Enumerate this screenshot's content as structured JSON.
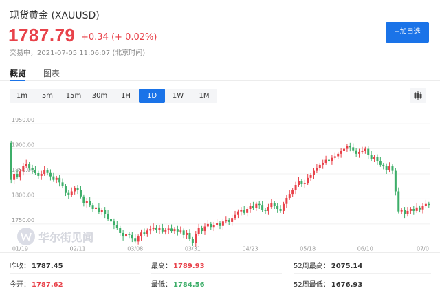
{
  "header": {
    "title": "现货黄金 (XAUUSD)",
    "price": "1787.79",
    "change": "+0.34 (+ 0.02%)",
    "status": "交易中，2021-07-05 11:06:07 (北京时间)",
    "follow_label": "+加自选"
  },
  "tabs": [
    {
      "label": "概览",
      "active": true
    },
    {
      "label": "图表",
      "active": false
    }
  ],
  "periods": [
    {
      "label": "1m",
      "active": false
    },
    {
      "label": "5m",
      "active": false
    },
    {
      "label": "15m",
      "active": false
    },
    {
      "label": "30m",
      "active": false
    },
    {
      "label": "1H",
      "active": false
    },
    {
      "label": "1D",
      "active": true
    },
    {
      "label": "1W",
      "active": false
    },
    {
      "label": "1M",
      "active": false
    }
  ],
  "watermark": "华尔街见闻",
  "chart_data": {
    "type": "candlestick",
    "y_ticks": [
      "1950.00",
      "1900.00",
      "1850.00",
      "1800.00",
      "1750.00"
    ],
    "y_tick_values": [
      1950,
      1900,
      1850,
      1800,
      1750
    ],
    "ylim": [
      1710,
      1968
    ],
    "x_ticks": [
      "01/19",
      "02/11",
      "03/08",
      "03/31",
      "04/23",
      "05/18",
      "06/10",
      "07/0"
    ],
    "x_tick_index": [
      3,
      22,
      41,
      60,
      79,
      98,
      117,
      136
    ],
    "colors": {
      "up": "#e8424a",
      "down": "#3dae69"
    },
    "closes": [
      1838,
      1850,
      1843,
      1855,
      1866,
      1870,
      1862,
      1858,
      1852,
      1846,
      1850,
      1858,
      1853,
      1845,
      1838,
      1842,
      1833,
      1826,
      1812,
      1808,
      1815,
      1822,
      1818,
      1805,
      1791,
      1796,
      1788,
      1780,
      1783,
      1774,
      1778,
      1770,
      1760,
      1755,
      1748,
      1742,
      1732,
      1725,
      1730,
      1728,
      1722,
      1715,
      1725,
      1733,
      1730,
      1737,
      1740,
      1743,
      1738,
      1742,
      1735,
      1738,
      1741,
      1736,
      1740,
      1735,
      1737,
      1728,
      1732,
      1720,
      1712,
      1730,
      1742,
      1736,
      1745,
      1750,
      1744,
      1748,
      1752,
      1746,
      1755,
      1758,
      1754,
      1762,
      1768,
      1775,
      1778,
      1772,
      1780,
      1786,
      1782,
      1790,
      1788,
      1778,
      1776,
      1784,
      1792,
      1786,
      1780,
      1776,
      1790,
      1802,
      1810,
      1818,
      1828,
      1836,
      1830,
      1832,
      1842,
      1848,
      1856,
      1862,
      1868,
      1872,
      1878,
      1876,
      1882,
      1885,
      1890,
      1896,
      1900,
      1906,
      1903,
      1897,
      1890,
      1894,
      1896,
      1900,
      1888,
      1880,
      1883,
      1876,
      1868,
      1865,
      1858,
      1865,
      1856,
      1815,
      1775,
      1778,
      1770,
      1776,
      1780,
      1776,
      1783,
      1779,
      1786,
      1790,
      1788
    ],
    "opens": [
      1912,
      1838,
      1850,
      1843,
      1855,
      1866,
      1870,
      1862,
      1858,
      1852,
      1846,
      1850,
      1858,
      1853,
      1845,
      1838,
      1842,
      1833,
      1826,
      1812,
      1808,
      1815,
      1822,
      1818,
      1805,
      1791,
      1796,
      1788,
      1780,
      1783,
      1774,
      1778,
      1770,
      1760,
      1755,
      1748,
      1742,
      1732,
      1725,
      1730,
      1728,
      1722,
      1715,
      1725,
      1733,
      1730,
      1737,
      1740,
      1743,
      1738,
      1742,
      1735,
      1738,
      1741,
      1736,
      1740,
      1735,
      1737,
      1728,
      1732,
      1720,
      1712,
      1730,
      1742,
      1736,
      1745,
      1750,
      1744,
      1748,
      1752,
      1746,
      1755,
      1758,
      1754,
      1762,
      1768,
      1775,
      1778,
      1772,
      1780,
      1786,
      1782,
      1790,
      1788,
      1778,
      1776,
      1784,
      1792,
      1786,
      1780,
      1776,
      1790,
      1802,
      1810,
      1818,
      1828,
      1836,
      1830,
      1832,
      1842,
      1848,
      1856,
      1862,
      1868,
      1872,
      1878,
      1876,
      1882,
      1885,
      1890,
      1896,
      1900,
      1906,
      1903,
      1897,
      1890,
      1894,
      1896,
      1900,
      1888,
      1880,
      1883,
      1876,
      1868,
      1865,
      1858,
      1865,
      1856,
      1815,
      1775,
      1778,
      1770,
      1776,
      1780,
      1776,
      1783,
      1779,
      1786,
      1790
    ]
  },
  "stats": {
    "prev_close": {
      "label": "昨收：",
      "value": "1787.45"
    },
    "open": {
      "label": "今开：",
      "value": "1787.62"
    },
    "high": {
      "label": "最高：",
      "value": "1789.93"
    },
    "low": {
      "label": "最低：",
      "value": "1784.56"
    },
    "w52_high": {
      "label": "52周最高：",
      "value": "2075.14"
    },
    "w52_low": {
      "label": "52周最低：",
      "value": "1676.93"
    }
  }
}
